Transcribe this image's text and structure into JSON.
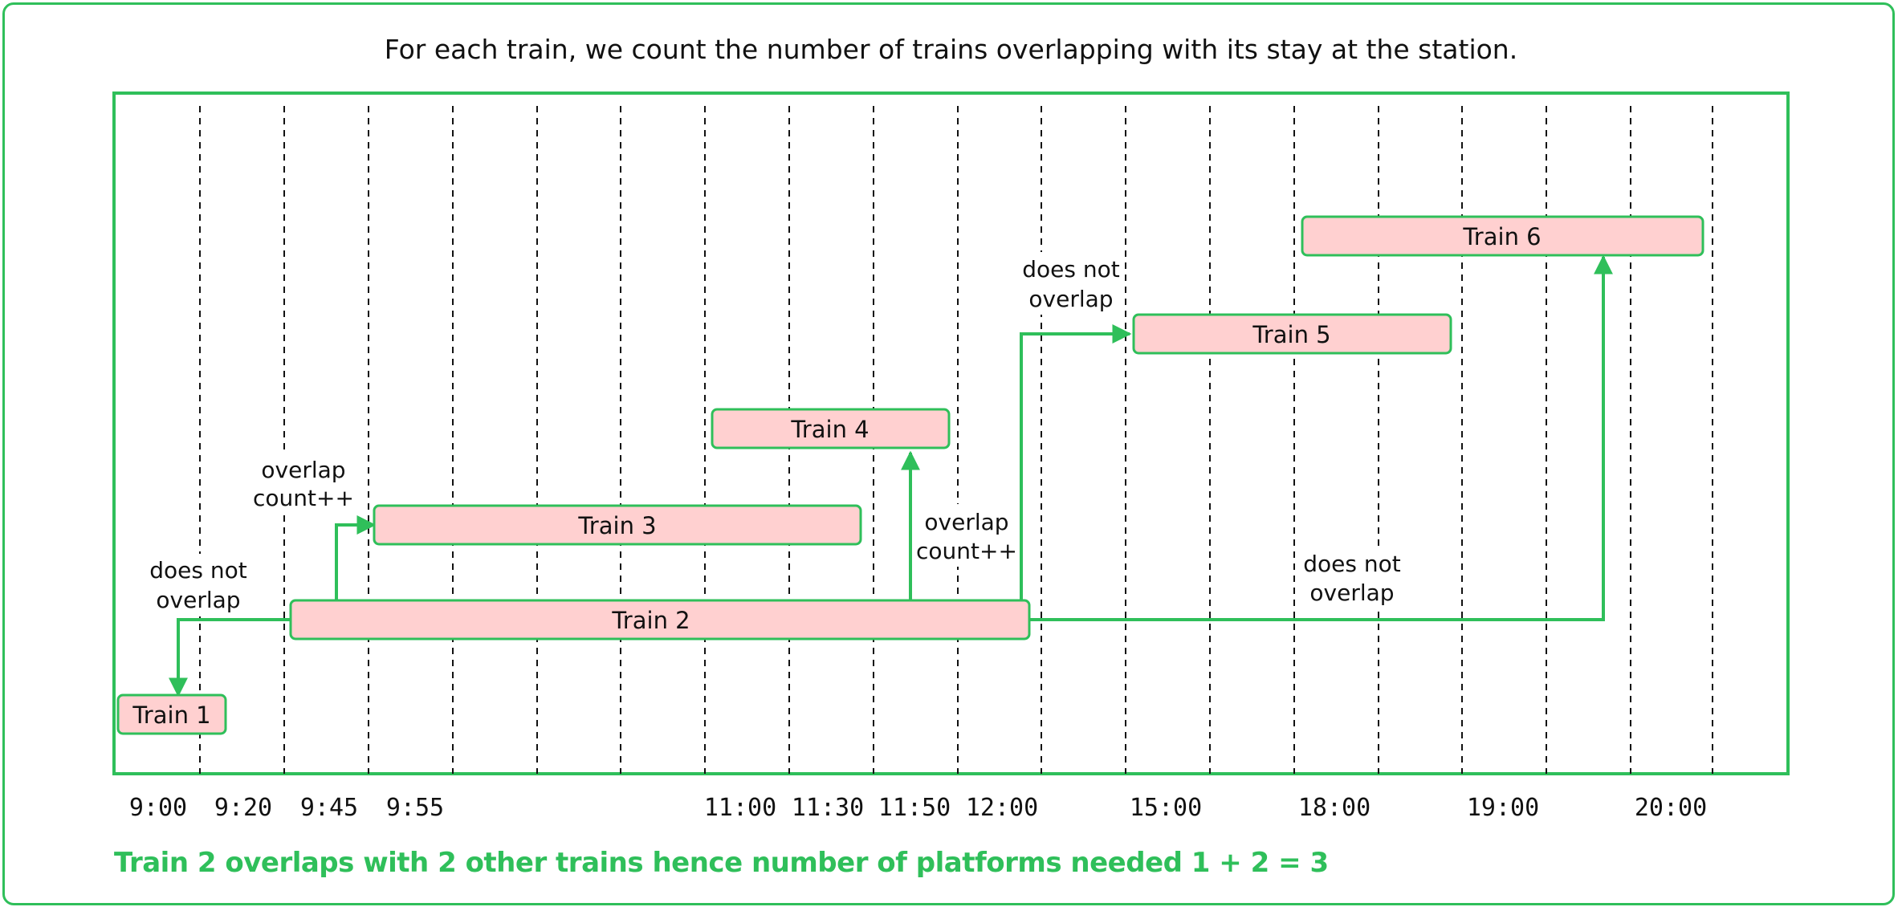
{
  "title": "For each train, we count the number of trains overlapping with its stay at the station.",
  "ticks": [
    "9:00",
    "9:20",
    "9:45",
    "9:55",
    "11:00",
    "11:30",
    "11:50",
    "12:00",
    "15:00",
    "18:00",
    "19:00",
    "20:00"
  ],
  "trains": [
    "Train 1",
    "Train 2",
    "Train 3",
    "Train 4",
    "Train 5",
    "Train 6"
  ],
  "annotations": {
    "t1": [
      "does not",
      "overlap"
    ],
    "t3": [
      "overlap",
      "count++"
    ],
    "t4": [
      "overlap",
      "count++"
    ],
    "t5": [
      "does not",
      "overlap"
    ],
    "t6": [
      "does not",
      "overlap"
    ]
  },
  "footer": "Train 2 overlaps with 2 other trains hence number of platforms needed 1 + 2 = 3",
  "colors": {
    "accent": "#2fbf5a",
    "bar_fill": "#ffd0d0",
    "dashed": "#111111"
  }
}
